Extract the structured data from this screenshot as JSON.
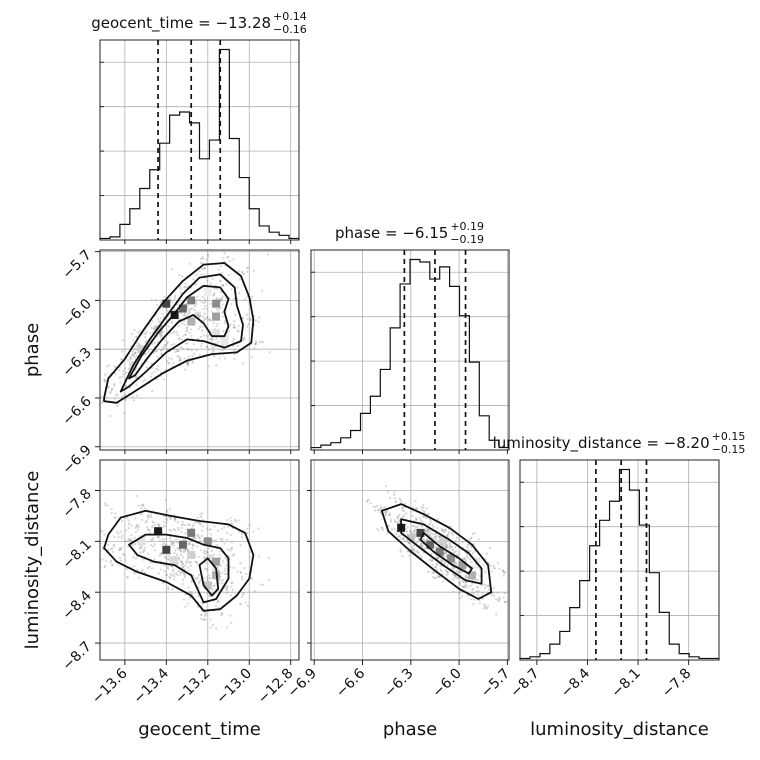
{
  "chart_data": {
    "type": "corner",
    "grid": true,
    "parameters": [
      {
        "name": "geocent_time",
        "label": "geocent_time",
        "range": [
          -13.72,
          -12.76
        ],
        "ticks": [
          -13.6,
          -13.4,
          -13.2,
          -13.0,
          -12.8
        ],
        "tick_labels": [
          "−13.6",
          "−13.4",
          "−13.2",
          "−13.0",
          "−12.8"
        ],
        "title_main": "geocent_time = −13.28",
        "title_plus": "+0.14",
        "title_minus": "−0.16",
        "quantiles": [
          -13.44,
          -13.28,
          -13.14
        ],
        "hist_edges": [
          -13.72,
          -13.672,
          -13.624,
          -13.576,
          -13.528,
          -13.48,
          -13.432,
          -13.384,
          -13.336,
          -13.288,
          -13.24,
          -13.192,
          -13.144,
          -13.096,
          -13.048,
          -13.0,
          -12.952,
          -12.904,
          -12.856,
          -12.808,
          -12.76
        ],
        "hist_counts": [
          1,
          2,
          10,
          20,
          33,
          45,
          62,
          80,
          82,
          75,
          52,
          64,
          122,
          65,
          40,
          20,
          9,
          5,
          3,
          1
        ]
      },
      {
        "name": "phase",
        "label": "phase",
        "range": [
          -6.92,
          -5.69
        ],
        "ticks": [
          -6.9,
          -6.6,
          -6.3,
          -6.0,
          -5.7
        ],
        "tick_labels": [
          "−6.9",
          "−6.6",
          "−6.3",
          "−6.0",
          "−5.7"
        ],
        "title_main": "phase = −6.15",
        "title_plus": "+0.19",
        "title_minus": "−0.19",
        "quantiles": [
          -6.34,
          -6.15,
          -5.96
        ],
        "hist_edges": [
          -6.92,
          -6.8585,
          -6.797,
          -6.7355,
          -6.674,
          -6.6125,
          -6.551,
          -6.4895,
          -6.428,
          -6.3665,
          -6.305,
          -6.2435,
          -6.182,
          -6.1205,
          -6.059,
          -5.9975,
          -5.936,
          -5.8745,
          -5.813,
          -5.7515,
          -5.69
        ],
        "hist_counts": [
          1,
          2,
          3,
          5,
          8,
          15,
          22,
          33,
          50,
          68,
          78,
          77,
          70,
          75,
          67,
          55,
          36,
          14,
          4,
          1
        ]
      },
      {
        "name": "luminosity_distance",
        "label": "luminosity_distance",
        "range": [
          -8.8,
          -7.62
        ],
        "ticks": [
          -8.7,
          -8.4,
          -8.1,
          -7.8
        ],
        "tick_labels": [
          "−8.7",
          "−8.4",
          "−8.1",
          "−7.8"
        ],
        "title_main": "luminosity_distance = −8.20",
        "title_plus": "+0.15",
        "title_minus": "−0.15",
        "quantiles": [
          -8.35,
          -8.2,
          -8.05
        ],
        "hist_edges": [
          -8.8,
          -8.741,
          -8.682,
          -8.623,
          -8.564,
          -8.505,
          -8.446,
          -8.387,
          -8.328,
          -8.269,
          -8.21,
          -8.151,
          -8.092,
          -8.033,
          -7.974,
          -7.915,
          -7.856,
          -7.797,
          -7.738,
          -7.679,
          -7.62
        ],
        "hist_counts": [
          1,
          2,
          4,
          10,
          18,
          33,
          50,
          72,
          88,
          100,
          120,
          107,
          85,
          55,
          30,
          10,
          4,
          2,
          1,
          1
        ]
      }
    ],
    "pairs": [
      {
        "x": "geocent_time",
        "y": "phase",
        "blocks": [
          [
            -13.36,
            -6.09
          ],
          [
            -13.4,
            -6.02
          ],
          [
            -13.32,
            -6.05
          ],
          [
            -13.28,
            -6.0
          ],
          [
            -13.16,
            -6.02
          ],
          [
            -13.16,
            -6.1
          ],
          [
            -13.28,
            -6.13
          ],
          [
            -13.44,
            -6.18
          ],
          [
            -13.52,
            -6.3
          ],
          [
            -13.56,
            -6.4
          ],
          [
            -13.16,
            -6.2
          ],
          [
            -13.12,
            -6.25
          ],
          [
            -13.2,
            -5.95
          ]
        ],
        "contours": [
          [
            [
              -13.58,
              -6.48
            ],
            [
              -13.52,
              -6.34
            ],
            [
              -13.44,
              -6.2
            ],
            [
              -13.36,
              -6.08
            ],
            [
              -13.3,
              -5.98
            ],
            [
              -13.22,
              -5.91
            ],
            [
              -13.14,
              -5.92
            ],
            [
              -13.1,
              -5.99
            ],
            [
              -13.12,
              -6.07
            ],
            [
              -13.1,
              -6.16
            ],
            [
              -13.12,
              -6.22
            ],
            [
              -13.18,
              -6.22
            ],
            [
              -13.22,
              -6.14
            ],
            [
              -13.27,
              -6.09
            ],
            [
              -13.34,
              -6.13
            ],
            [
              -13.42,
              -6.24
            ],
            [
              -13.5,
              -6.37
            ],
            [
              -13.55,
              -6.46
            ]
          ],
          [
            [
              -13.62,
              -6.56
            ],
            [
              -13.56,
              -6.4
            ],
            [
              -13.48,
              -6.24
            ],
            [
              -13.4,
              -6.1
            ],
            [
              -13.32,
              -5.96
            ],
            [
              -13.24,
              -5.86
            ],
            [
              -13.14,
              -5.84
            ],
            [
              -13.07,
              -5.92
            ],
            [
              -13.06,
              -6.03
            ],
            [
              -13.03,
              -6.15
            ],
            [
              -13.04,
              -6.25
            ],
            [
              -13.12,
              -6.29
            ],
            [
              -13.22,
              -6.25
            ],
            [
              -13.3,
              -6.24
            ],
            [
              -13.4,
              -6.32
            ],
            [
              -13.5,
              -6.44
            ],
            [
              -13.58,
              -6.53
            ]
          ],
          [
            [
              -13.7,
              -6.6
            ],
            [
              -13.68,
              -6.48
            ],
            [
              -13.6,
              -6.36
            ],
            [
              -13.52,
              -6.2
            ],
            [
              -13.42,
              -6.02
            ],
            [
              -13.32,
              -5.88
            ],
            [
              -13.22,
              -5.78
            ],
            [
              -13.12,
              -5.77
            ],
            [
              -13.04,
              -5.85
            ],
            [
              -13.0,
              -5.98
            ],
            [
              -12.98,
              -6.12
            ],
            [
              -12.99,
              -6.26
            ],
            [
              -13.06,
              -6.32
            ],
            [
              -13.18,
              -6.33
            ],
            [
              -13.3,
              -6.37
            ],
            [
              -13.42,
              -6.45
            ],
            [
              -13.54,
              -6.55
            ],
            [
              -13.64,
              -6.63
            ],
            [
              -13.7,
              -6.62
            ]
          ]
        ]
      },
      {
        "x": "geocent_time",
        "y": "luminosity_distance",
        "blocks": [
          [
            -13.44,
            -8.04
          ],
          [
            -13.4,
            -8.15
          ],
          [
            -13.32,
            -8.12
          ],
          [
            -13.28,
            -8.05
          ],
          [
            -13.2,
            -8.1
          ],
          [
            -13.16,
            -8.22
          ],
          [
            -13.16,
            -8.3
          ],
          [
            -13.2,
            -8.36
          ],
          [
            -13.28,
            -8.18
          ],
          [
            -13.36,
            -8.22
          ],
          [
            -13.52,
            -8.1
          ]
        ],
        "contours": [
          [
            [
              -13.2,
              -8.2
            ],
            [
              -13.16,
              -8.26
            ],
            [
              -13.15,
              -8.38
            ],
            [
              -13.18,
              -8.42
            ],
            [
              -13.22,
              -8.36
            ],
            [
              -13.24,
              -8.24
            ]
          ],
          [
            [
              -13.58,
              -8.12
            ],
            [
              -13.5,
              -8.06
            ],
            [
              -13.4,
              -8.06
            ],
            [
              -13.3,
              -8.08
            ],
            [
              -13.22,
              -8.12
            ],
            [
              -13.14,
              -8.14
            ],
            [
              -13.1,
              -8.2
            ],
            [
              -13.1,
              -8.32
            ],
            [
              -13.16,
              -8.44
            ],
            [
              -13.22,
              -8.46
            ],
            [
              -13.28,
              -8.3
            ],
            [
              -13.36,
              -8.24
            ],
            [
              -13.46,
              -8.22
            ],
            [
              -13.54,
              -8.18
            ]
          ],
          [
            [
              -13.68,
              -8.06
            ],
            [
              -13.62,
              -7.96
            ],
            [
              -13.5,
              -7.92
            ],
            [
              -13.38,
              -7.95
            ],
            [
              -13.24,
              -7.98
            ],
            [
              -13.1,
              -8.0
            ],
            [
              -13.02,
              -8.05
            ],
            [
              -12.98,
              -8.18
            ],
            [
              -13.0,
              -8.32
            ],
            [
              -13.06,
              -8.42
            ],
            [
              -13.14,
              -8.5
            ],
            [
              -13.22,
              -8.51
            ],
            [
              -13.28,
              -8.42
            ],
            [
              -13.4,
              -8.34
            ],
            [
              -13.54,
              -8.28
            ],
            [
              -13.64,
              -8.22
            ],
            [
              -13.7,
              -8.14
            ]
          ]
        ]
      },
      {
        "x": "phase",
        "y": "luminosity_distance",
        "blocks": [
          [
            -6.36,
            -8.02
          ],
          [
            -6.24,
            -8.05
          ],
          [
            -6.18,
            -8.12
          ],
          [
            -6.12,
            -8.16
          ],
          [
            -6.05,
            -8.2
          ],
          [
            -5.98,
            -8.24
          ],
          [
            -5.92,
            -8.3
          ],
          [
            -6.3,
            -8.08
          ],
          [
            -6.1,
            -8.1
          ]
        ],
        "contours": [
          [
            [
              -6.22,
              -8.05
            ],
            [
              -6.12,
              -8.13
            ],
            [
              -6.0,
              -8.2
            ],
            [
              -5.92,
              -8.26
            ],
            [
              -5.94,
              -8.29
            ],
            [
              -6.04,
              -8.24
            ],
            [
              -6.16,
              -8.16
            ],
            [
              -6.24,
              -8.09
            ]
          ],
          [
            [
              -6.36,
              -7.97
            ],
            [
              -6.22,
              -8.0
            ],
            [
              -6.06,
              -8.09
            ],
            [
              -5.94,
              -8.17
            ],
            [
              -5.86,
              -8.26
            ],
            [
              -5.86,
              -8.35
            ],
            [
              -5.96,
              -8.33
            ],
            [
              -6.1,
              -8.24
            ],
            [
              -6.24,
              -8.14
            ],
            [
              -6.36,
              -8.05
            ]
          ],
          [
            [
              -6.48,
              -7.92
            ],
            [
              -6.36,
              -7.88
            ],
            [
              -6.22,
              -7.94
            ],
            [
              -6.06,
              -8.02
            ],
            [
              -5.92,
              -8.12
            ],
            [
              -5.82,
              -8.24
            ],
            [
              -5.8,
              -8.4
            ],
            [
              -5.88,
              -8.44
            ],
            [
              -6.0,
              -8.38
            ],
            [
              -6.14,
              -8.28
            ],
            [
              -6.3,
              -8.16
            ],
            [
              -6.44,
              -8.04
            ]
          ]
        ]
      }
    ]
  }
}
